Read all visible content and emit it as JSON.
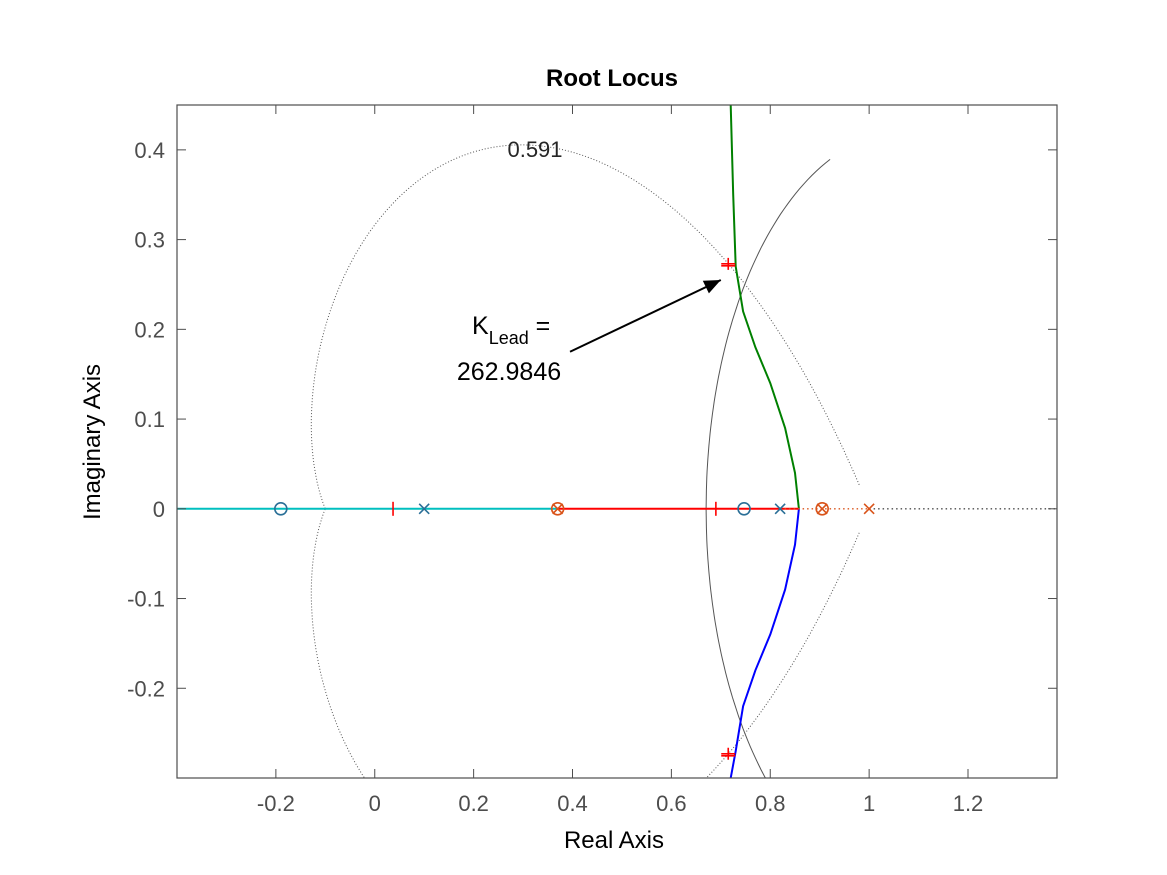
{
  "chart_data": {
    "type": "scatter",
    "title": "Root Locus",
    "xlabel": "Real Axis",
    "ylabel": "Imaginary Axis",
    "xlim": [
      -0.4,
      1.38
    ],
    "ylim": [
      -0.3,
      0.45
    ],
    "xticks": [
      -0.2,
      0,
      0.2,
      0.4,
      0.6,
      0.8,
      1,
      1.2
    ],
    "xtick_labels": [
      "-0.2",
      "0",
      "0.2",
      "0.4",
      "0.6",
      "0.8",
      "1",
      "1.2"
    ],
    "yticks": [
      -0.2,
      -0.1,
      0,
      0.1,
      0.2,
      0.3,
      0.4
    ],
    "ytick_labels": [
      "-0.2",
      "-0.1",
      "0",
      "0.1",
      "0.2",
      "0.3",
      "0.4"
    ],
    "grid": false,
    "colors": {
      "axes": "#4d4d4d",
      "green": "#008000",
      "blue": "#0000ff",
      "red": "#ff0000",
      "cyan": "#00bfbf",
      "cross_blue": "#2a6f97",
      "orange": "#d95319",
      "grid_line": "#555555"
    },
    "series": [
      {
        "color": "green",
        "style": "solid",
        "x": [
          0.72,
          0.725,
          0.73,
          0.745,
          0.77,
          0.8,
          0.83,
          0.85,
          0.858
        ],
        "y": [
          0.45,
          0.35,
          0.27,
          0.22,
          0.18,
          0.14,
          0.09,
          0.04,
          0.0
        ]
      },
      {
        "color": "blue",
        "style": "solid",
        "x": [
          0.858,
          0.85,
          0.83,
          0.8,
          0.77,
          0.745,
          0.73,
          0.72
        ],
        "y": [
          0.0,
          -0.04,
          -0.09,
          -0.14,
          -0.18,
          -0.22,
          -0.27,
          -0.3
        ]
      },
      {
        "color": "red",
        "style": "solid",
        "x": [
          0.37,
          0.858
        ],
        "y": [
          0,
          0
        ]
      },
      {
        "color": "cyan",
        "style": "solid",
        "x": [
          -0.4,
          0.37
        ],
        "y": [
          0,
          0
        ]
      },
      {
        "color": "cyan",
        "style": "dotted",
        "x": [
          0.1,
          0.37
        ],
        "y": [
          0,
          0
        ]
      },
      {
        "color": "orange",
        "style": "dotted",
        "x": [
          0.82,
          1.0
        ],
        "y": [
          0,
          0
        ]
      },
      {
        "color": "axes",
        "style": "dotted",
        "x": [
          1.0,
          1.38
        ],
        "y": [
          0,
          0
        ]
      }
    ],
    "poles": [
      {
        "x": 0.1,
        "y": 0,
        "color": "cross_blue"
      },
      {
        "x": 0.82,
        "y": 0,
        "color": "cross_blue"
      },
      {
        "x": 0.37,
        "y": 0,
        "color": "orange"
      },
      {
        "x": 0.905,
        "y": 0,
        "color": "orange"
      },
      {
        "x": 1.0,
        "y": 0,
        "color": "orange"
      }
    ],
    "zeros": [
      {
        "x": -0.19,
        "y": 0,
        "color": "cross_blue"
      },
      {
        "x": 0.747,
        "y": 0,
        "color": "cross_blue"
      },
      {
        "x": 0.37,
        "y": 0,
        "color": "orange"
      },
      {
        "x": 0.905,
        "y": 0,
        "color": "orange"
      }
    ],
    "gain_markers": [
      {
        "x": 0.715,
        "y": 0.273,
        "color": "red",
        "orientation": "plus"
      },
      {
        "x": 0.715,
        "y": -0.273,
        "color": "red",
        "orientation": "plus"
      },
      {
        "x": 0.037,
        "y": 0,
        "color": "red",
        "orientation": "vertical"
      },
      {
        "x": 0.69,
        "y": 0,
        "color": "red",
        "orientation": "vertical"
      }
    ],
    "damping_grid": {
      "zeta": 0.591,
      "label": "0.591"
    },
    "annotation": {
      "k_text": "K",
      "k_subscript": "Lead",
      "k_equals": " =",
      "value_text": "262.9846",
      "arrow_to": {
        "x": 0.7,
        "y": 0.255
      },
      "arrow_from": {
        "x": 0.395,
        "y": 0.175
      }
    }
  }
}
